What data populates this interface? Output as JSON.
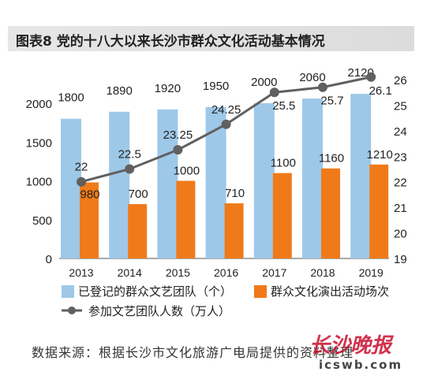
{
  "title": "图表8  党的十八大以来长沙市群众文化活动基本情况",
  "source": "数据来源：根据长沙市文化旅游广电局提供的资料整理",
  "watermark": {
    "logo": "长沙晚报",
    "url": "icswb.com"
  },
  "colors": {
    "bar_blue": "#9ec8e8",
    "bar_orange": "#f07a1a",
    "line": "#606060",
    "title_bg": "#e2e2e2"
  },
  "chart_data": {
    "type": "bar",
    "categories": [
      "2013",
      "2014",
      "2015",
      "2016",
      "2017",
      "2018",
      "2019"
    ],
    "series": [
      {
        "name": "已登记的群众文艺团队（个）",
        "type": "bar",
        "axis": "left",
        "values": [
          1800,
          1890,
          1920,
          1950,
          2000,
          2060,
          2120
        ]
      },
      {
        "name": "群众文化演出活动场次",
        "type": "bar",
        "axis": "left",
        "values": [
          980,
          700,
          1000,
          710,
          1100,
          1160,
          1210
        ]
      },
      {
        "name": "参加文艺团队人数（万人）",
        "type": "line",
        "axis": "right",
        "values": [
          22,
          22.5,
          23.25,
          24.25,
          25.5,
          25.7,
          26.1
        ]
      }
    ],
    "y_left": {
      "lim": [
        0,
        2000
      ],
      "ticks": [
        0,
        500,
        1000,
        1500,
        2000
      ]
    },
    "y_right": {
      "lim": [
        19,
        26
      ],
      "ticks": [
        19,
        20,
        21,
        22,
        23,
        24,
        25,
        26
      ]
    },
    "legend_position": "bottom"
  }
}
